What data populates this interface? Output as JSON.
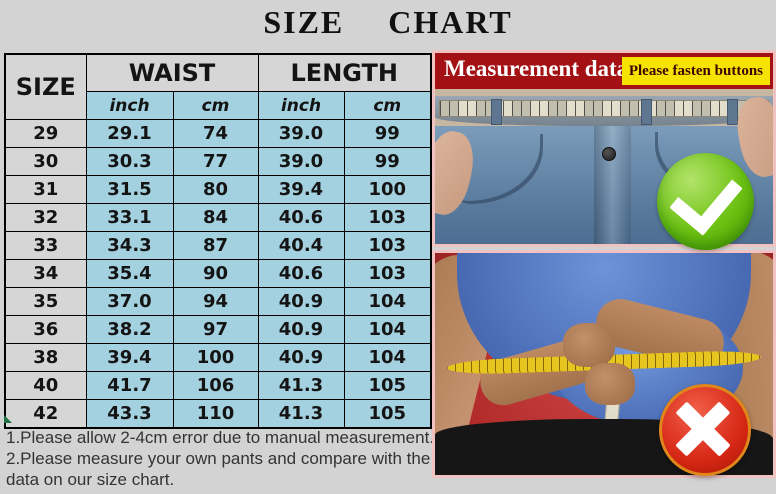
{
  "title": "SIZE CHART",
  "table": {
    "size_header": "SIZE",
    "group_headers": {
      "waist": "WAIST",
      "length": "LENGTH"
    },
    "unit_headers": [
      "inch",
      "cm",
      "inch",
      "cm"
    ],
    "rows": [
      {
        "size": "29",
        "waist_inch": "29.1",
        "waist_cm": "74",
        "length_inch": "39.0",
        "length_cm": "99"
      },
      {
        "size": "30",
        "waist_inch": "30.3",
        "waist_cm": "77",
        "length_inch": "39.0",
        "length_cm": "99"
      },
      {
        "size": "31",
        "waist_inch": "31.5",
        "waist_cm": "80",
        "length_inch": "39.4",
        "length_cm": "100"
      },
      {
        "size": "32",
        "waist_inch": "33.1",
        "waist_cm": "84",
        "length_inch": "40.6",
        "length_cm": "103"
      },
      {
        "size": "33",
        "waist_inch": "34.3",
        "waist_cm": "87",
        "length_inch": "40.4",
        "length_cm": "103"
      },
      {
        "size": "34",
        "waist_inch": "35.4",
        "waist_cm": "90",
        "length_inch": "40.6",
        "length_cm": "103"
      },
      {
        "size": "35",
        "waist_inch": "37.0",
        "waist_cm": "94",
        "length_inch": "40.9",
        "length_cm": "104"
      },
      {
        "size": "36",
        "waist_inch": "38.2",
        "waist_cm": "97",
        "length_inch": "40.9",
        "length_cm": "104"
      },
      {
        "size": "38",
        "waist_inch": "39.4",
        "waist_cm": "100",
        "length_inch": "40.9",
        "length_cm": "104"
      },
      {
        "size": "40",
        "waist_inch": "41.7",
        "waist_cm": "106",
        "length_inch": "41.3",
        "length_cm": "105"
      },
      {
        "size": "42",
        "waist_inch": "43.3",
        "waist_cm": "110",
        "length_inch": "41.3",
        "length_cm": "105"
      }
    ]
  },
  "chart_data": {
    "type": "table",
    "title": "SIZE CHART",
    "columns": [
      "SIZE",
      "WAIST inch",
      "WAIST cm",
      "LENGTH inch",
      "LENGTH cm"
    ],
    "rows": [
      [
        29,
        29.1,
        74,
        39.0,
        99
      ],
      [
        30,
        30.3,
        77,
        39.0,
        99
      ],
      [
        31,
        31.5,
        80,
        39.4,
        100
      ],
      [
        32,
        33.1,
        84,
        40.6,
        103
      ],
      [
        33,
        34.3,
        87,
        40.4,
        103
      ],
      [
        34,
        35.4,
        90,
        40.6,
        103
      ],
      [
        35,
        37.0,
        94,
        40.9,
        104
      ],
      [
        36,
        38.2,
        97,
        40.9,
        104
      ],
      [
        38,
        39.4,
        100,
        40.9,
        104
      ],
      [
        40,
        41.7,
        106,
        41.3,
        105
      ],
      [
        42,
        43.3,
        110,
        41.3,
        105
      ]
    ]
  },
  "top_photo": {
    "banner_label": "Measurement data X2",
    "tag_label": "Please fasten buttons",
    "badge": "green check (correct way: measure pants laid flat, buttons fastened)"
  },
  "bottom_photo": {
    "badge": "red cross (wrong way: measuring body waist instead of pants)"
  },
  "notes": {
    "line1": "1.Please allow 2-4cm error due to manual measurement.",
    "line2": "2.Please measure your own pants and compare with the data on our size chart."
  },
  "colors": {
    "page_background": "#d3d3d3",
    "cell_blue": "#a4d1df",
    "cell_gray": "#d6d6d6",
    "unit_text_red": "#ee0000",
    "banner_red": "#a31115",
    "tag_yellow": "#f6e400",
    "photo_border_pink": "#f0c2c2",
    "check_green": "#6cc112",
    "cross_red": "#d62815"
  }
}
